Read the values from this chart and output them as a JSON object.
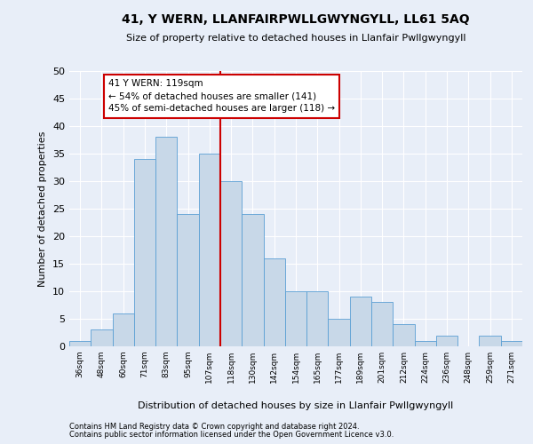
{
  "title": "41, Y WERN, LLANFAIRPWLLGWYNGYLL, LL61 5AQ",
  "subtitle": "Size of property relative to detached houses in Llanfair Pwllgwyngyll",
  "xlabel": "Distribution of detached houses by size in Llanfair Pwllgwyngyll",
  "ylabel": "Number of detached properties",
  "footnote1": "Contains HM Land Registry data © Crown copyright and database right 2024.",
  "footnote2": "Contains public sector information licensed under the Open Government Licence v3.0.",
  "bar_color": "#c8d8e8",
  "bar_edge_color": "#5a9fd4",
  "background_color": "#e8eef8",
  "grid_color": "#ffffff",
  "annotation_text": "41 Y WERN: 119sqm\n← 54% of detached houses are smaller (141)\n45% of semi-detached houses are larger (118) →",
  "annotation_box_color": "#ffffff",
  "annotation_box_edge": "#cc0000",
  "annotation_text_color": "#000000",
  "categories": [
    "36sqm",
    "48sqm",
    "60sqm",
    "71sqm",
    "83sqm",
    "95sqm",
    "107sqm",
    "118sqm",
    "130sqm",
    "142sqm",
    "154sqm",
    "165sqm",
    "177sqm",
    "189sqm",
    "201sqm",
    "212sqm",
    "224sqm",
    "236sqm",
    "248sqm",
    "259sqm",
    "271sqm"
  ],
  "values": [
    1,
    3,
    6,
    34,
    38,
    24,
    35,
    30,
    24,
    16,
    10,
    10,
    5,
    9,
    8,
    4,
    1,
    2,
    0,
    2,
    1
  ],
  "ylim": [
    0,
    50
  ],
  "yticks": [
    0,
    5,
    10,
    15,
    20,
    25,
    30,
    35,
    40,
    45,
    50
  ],
  "red_line_index": 7
}
